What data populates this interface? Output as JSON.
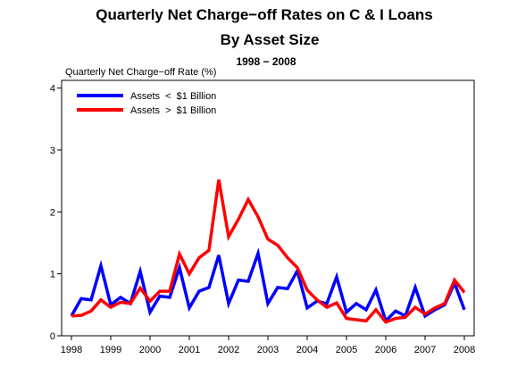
{
  "chart_data": {
    "type": "line",
    "title": "Quarterly Net Charge−off Rates on C & I Loans",
    "title_line2": "By Asset Size",
    "subtitle": "1998 − 2008",
    "ylabel": "Quarterly Net Charge−off Rate (%)",
    "xlabel": "",
    "ylim": [
      0,
      4
    ],
    "xlim": [
      1997.75,
      2008.25
    ],
    "yticks": [
      0,
      1,
      2,
      3,
      4
    ],
    "ytick_labels": [
      "0",
      "1",
      "2",
      "3",
      "4"
    ],
    "xticks": [
      1998,
      1999,
      2000,
      2001,
      2002,
      2003,
      2004,
      2005,
      2006,
      2007,
      2008
    ],
    "xtick_labels": [
      "1998",
      "1999",
      "2000",
      "2001",
      "2002",
      "2003",
      "2004",
      "2005",
      "2006",
      "2007",
      "2008"
    ],
    "grid": false,
    "legend_position": "top-left",
    "x": [
      1998.0,
      1998.25,
      1998.5,
      1998.75,
      1999.0,
      1999.25,
      1999.5,
      1999.75,
      2000.0,
      2000.25,
      2000.5,
      2000.75,
      2001.0,
      2001.25,
      2001.5,
      2001.75,
      2002.0,
      2002.25,
      2002.5,
      2002.75,
      2003.0,
      2003.25,
      2003.5,
      2003.75,
      2004.0,
      2004.25,
      2004.5,
      2004.75,
      2005.0,
      2005.25,
      2005.5,
      2005.75,
      2006.0,
      2006.25,
      2006.5,
      2006.75,
      2007.0,
      2007.25,
      2007.5,
      2007.75,
      2008.0
    ],
    "series": [
      {
        "name": "Assets  <  $1 Billion",
        "color": "#0000ff",
        "values": [
          0.32,
          0.6,
          0.58,
          1.13,
          0.5,
          0.62,
          0.52,
          1.04,
          0.38,
          0.64,
          0.62,
          1.1,
          0.45,
          0.72,
          0.78,
          1.3,
          0.52,
          0.9,
          0.88,
          1.33,
          0.52,
          0.78,
          0.76,
          1.05,
          0.45,
          0.56,
          0.52,
          0.95,
          0.38,
          0.52,
          0.42,
          0.74,
          0.24,
          0.4,
          0.32,
          0.78,
          0.32,
          0.42,
          0.5,
          0.85,
          0.42
        ]
      },
      {
        "name": "Assets  >  $1 Billion",
        "color": "#ff0000",
        "values": [
          0.32,
          0.33,
          0.4,
          0.58,
          0.46,
          0.54,
          0.52,
          0.77,
          0.56,
          0.72,
          0.72,
          1.32,
          1.0,
          1.26,
          1.38,
          2.52,
          1.6,
          1.88,
          2.2,
          1.92,
          1.56,
          1.46,
          1.26,
          1.1,
          0.74,
          0.58,
          0.46,
          0.53,
          0.28,
          0.26,
          0.24,
          0.42,
          0.22,
          0.28,
          0.3,
          0.46,
          0.35,
          0.45,
          0.52,
          0.9,
          0.7
        ]
      }
    ]
  }
}
